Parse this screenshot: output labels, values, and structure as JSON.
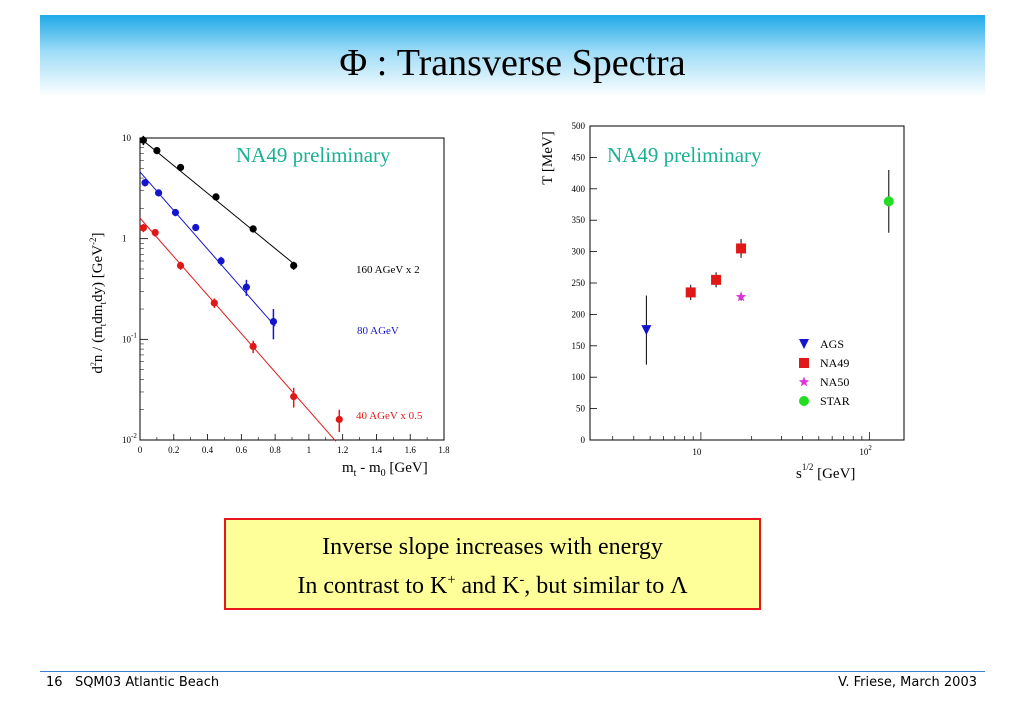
{
  "slide": {
    "title": "Φ : Transverse Spectra",
    "conclusion": {
      "line1": "Inverse slope increases with energy",
      "line2_a": "In contrast to K",
      "line2_sup1": "+",
      "line2_b": " and K",
      "line2_sup2": "-",
      "line2_c": ", but similar to Λ"
    },
    "footer": {
      "left": "16   SQM03 Atlantic Beach",
      "right": "V. Friese, March 2003"
    }
  },
  "chart_data": [
    {
      "type": "scatter",
      "annotation": "NA49 preliminary",
      "xlabel_main": "m",
      "xlabel_sub1": "t",
      "xlabel_mid": " - m",
      "xlabel_sub2": "0",
      "xlabel_unit": " [GeV]",
      "ylabel": "d²n / (m_t dm_t dy) [GeV⁻²]",
      "ylabel_parts": {
        "a": "d",
        "b": "n / (m",
        "c": "t",
        "d": "dm",
        "e": "t",
        "f": "dy) [GeV",
        "g": "-2",
        "h": "]"
      },
      "xlim": [
        0,
        1.8
      ],
      "ylim_log10": [
        -2,
        1
      ],
      "x_ticks": [
        "0",
        "0.2",
        "0.4",
        "0.6",
        "0.8",
        "1",
        "1.2",
        "1.4",
        "1.6",
        "1.8"
      ],
      "y_ticks": [
        {
          "base": "10",
          "exp": "",
          "value": 1
        },
        {
          "base": "1",
          "exp": "",
          "value": 0
        },
        {
          "base": "10",
          "exp": "-1",
          "value": -1
        },
        {
          "base": "10",
          "exp": "-2",
          "value": -2
        }
      ],
      "series": [
        {
          "name": "160 AGeV x 2",
          "color": "#000000",
          "points": [
            {
              "x": 0.02,
              "y": 9.5,
              "err": 1.0
            },
            {
              "x": 0.1,
              "y": 7.5,
              "err": 0.6
            },
            {
              "x": 0.24,
              "y": 5.1,
              "err": 0.4
            },
            {
              "x": 0.45,
              "y": 2.6,
              "err": 0.2
            },
            {
              "x": 0.67,
              "y": 1.25,
              "err": 0.1
            },
            {
              "x": 0.91,
              "y": 0.54,
              "err": 0.05
            }
          ],
          "fit": [
            {
              "x": 0.0,
              "y": 10.0
            },
            {
              "x": 0.93,
              "y": 0.53
            }
          ]
        },
        {
          "name": "80 AGeV",
          "color": "#1414cc",
          "points": [
            {
              "x": 0.03,
              "y": 3.6,
              "err": 0.3
            },
            {
              "x": 0.11,
              "y": 2.85,
              "err": 0.22
            },
            {
              "x": 0.21,
              "y": 1.82,
              "err": 0.15
            },
            {
              "x": 0.33,
              "y": 1.29,
              "err": 0.1
            },
            {
              "x": 0.48,
              "y": 0.6,
              "err": 0.06
            },
            {
              "x": 0.63,
              "y": 0.33,
              "err": 0.06
            },
            {
              "x": 0.79,
              "y": 0.15,
              "err": 0.05
            }
          ],
          "fit": [
            {
              "x": 0.0,
              "y": 4.6
            },
            {
              "x": 0.8,
              "y": 0.135
            }
          ]
        },
        {
          "name": "40 AGeV x 0.5",
          "color": "#e01818",
          "points": [
            {
              "x": 0.02,
              "y": 1.28,
              "err": 0.12
            },
            {
              "x": 0.09,
              "y": 1.15,
              "err": 0.1
            },
            {
              "x": 0.24,
              "y": 0.54,
              "err": 0.05
            },
            {
              "x": 0.44,
              "y": 0.23,
              "err": 0.025
            },
            {
              "x": 0.67,
              "y": 0.085,
              "err": 0.012
            },
            {
              "x": 0.91,
              "y": 0.027,
              "err": 0.006
            },
            {
              "x": 1.18,
              "y": 0.016,
              "err": 0.004
            }
          ],
          "fit": [
            {
              "x": 0.0,
              "y": 1.6
            },
            {
              "x": 1.16,
              "y": 0.0097
            }
          ]
        }
      ]
    },
    {
      "type": "scatter",
      "annotation": "NA49 preliminary",
      "xlabel_base": "s",
      "xlabel_sup": "1/2",
      "xlabel_unit": " [GeV]",
      "ylabel": "T [MeV]",
      "xscale": "log",
      "xlim": [
        2.2,
        160
      ],
      "ylim": [
        0,
        500
      ],
      "x_ticks": [
        {
          "base": "10",
          "exp": "",
          "value": 10
        },
        {
          "base": "10",
          "exp": "2",
          "value": 100
        }
      ],
      "y_ticks": [
        0,
        50,
        100,
        150,
        200,
        250,
        300,
        350,
        400,
        450,
        500
      ],
      "legend_position": "bottom-right",
      "series": [
        {
          "name": "AGS",
          "marker": "triangle-down",
          "color": "#1414cc",
          "points": [
            {
              "x": 4.75,
              "y": 175,
              "err": 55
            }
          ]
        },
        {
          "name": "NA49",
          "marker": "square",
          "color": "#e01818",
          "points": [
            {
              "x": 8.7,
              "y": 235,
              "err": 12
            },
            {
              "x": 12.3,
              "y": 255,
              "err": 12
            },
            {
              "x": 17.3,
              "y": 305,
              "err": 15
            }
          ]
        },
        {
          "name": "NA50",
          "marker": "star",
          "color": "#dd33dd",
          "points": [
            {
              "x": 17.3,
              "y": 228,
              "err": 6
            }
          ]
        },
        {
          "name": "STAR",
          "marker": "circle",
          "color": "#22dd22",
          "points": [
            {
              "x": 130,
              "y": 380,
              "err": 50
            }
          ]
        }
      ]
    }
  ]
}
